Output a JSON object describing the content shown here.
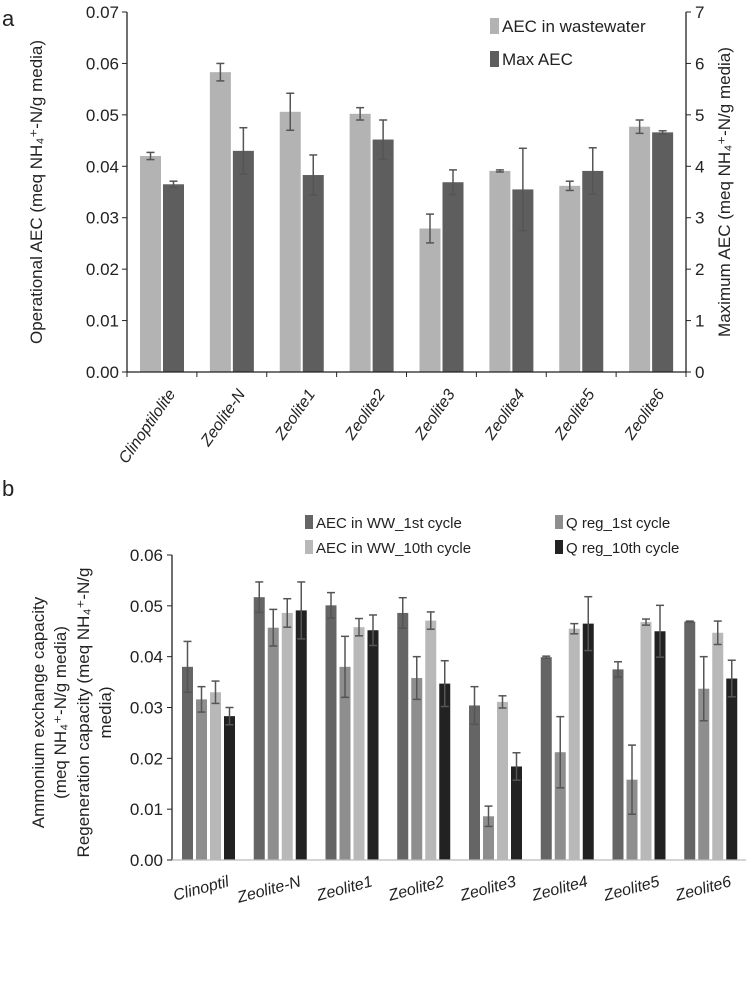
{
  "chart_data": [
    {
      "panel": "a",
      "type": "bar",
      "categories": [
        "Clinoptilolite",
        "Zeolite-N",
        "Zeolite1",
        "Zeolite2",
        "Zeolite3",
        "Zeolite4",
        "Zeolite5",
        "Zeolite6"
      ],
      "ylabel": "Operational AEC (meq NH₄⁺-N/g media)",
      "y2label": "Maximum AEC (meq NH₄⁺-N/g media)",
      "ylim": [
        0,
        0.07
      ],
      "yticks": [
        "0.00",
        "0.01",
        "0.02",
        "0.03",
        "0.04",
        "0.05",
        "0.06",
        "0.07"
      ],
      "y2lim": [
        0,
        7
      ],
      "y2ticks": [
        "0",
        "1",
        "2",
        "3",
        "4",
        "5",
        "6",
        "7"
      ],
      "legend_position": "top-right",
      "series": [
        {
          "name": "AEC in wastewater",
          "axis": "left",
          "color": "#b3b3b3",
          "values": [
            0.042,
            0.0583,
            0.0506,
            0.0502,
            0.0279,
            0.0391,
            0.0362,
            0.0477
          ],
          "errors": [
            0.0007,
            0.0017,
            0.0036,
            0.0012,
            0.0028,
            0.0002,
            0.0009,
            0.0013
          ]
        },
        {
          "name": "Max AEC",
          "axis": "right",
          "color": "#5e5e5e",
          "values": [
            3.65,
            4.3,
            3.83,
            4.52,
            3.69,
            3.55,
            3.91,
            4.66
          ],
          "errors": [
            0.06,
            0.45,
            0.39,
            0.38,
            0.24,
            0.8,
            0.45,
            0.03
          ]
        }
      ]
    },
    {
      "panel": "b",
      "type": "bar",
      "categories": [
        "Clinoptil",
        "Zeolite-N",
        "Zeolite1",
        "Zeolite2",
        "Zeolite3",
        "Zeolite4",
        "Zeolite5",
        "Zeolite6"
      ],
      "ylabel_lines": [
        "Ammonium  exchange capacity",
        "(meq NH₄⁺-N/g media)",
        "Regeneration capacity (meq NH₄⁺-N/g",
        "media)"
      ],
      "ylim": [
        0,
        0.06
      ],
      "yticks": [
        "0.00",
        "0.01",
        "0.02",
        "0.03",
        "0.04",
        "0.05",
        "0.06"
      ],
      "legend_position": "top",
      "series": [
        {
          "name": "AEC in WW_1st cycle",
          "color": "#656565",
          "values": [
            0.038,
            0.0517,
            0.0501,
            0.0486,
            0.0304,
            0.0399,
            0.0375,
            0.0469
          ],
          "errors": [
            0.005,
            0.003,
            0.0025,
            0.003,
            0.0037,
            0.0002,
            0.0015,
            0.0001
          ]
        },
        {
          "name": "Q reg_1st cycle",
          "color": "#8e8e8e",
          "values": [
            0.0316,
            0.0457,
            0.038,
            0.0358,
            0.0086,
            0.0212,
            0.0158,
            0.0337
          ],
          "errors": [
            0.0025,
            0.0036,
            0.006,
            0.0042,
            0.002,
            0.007,
            0.0068,
            0.0063
          ]
        },
        {
          "name": "AEC in WW_10th cycle",
          "color": "#b8b8b8",
          "values": [
            0.033,
            0.0486,
            0.0458,
            0.0471,
            0.0311,
            0.0455,
            0.0468,
            0.0447
          ],
          "errors": [
            0.0022,
            0.0028,
            0.0017,
            0.0017,
            0.0012,
            0.001,
            0.0006,
            0.0023
          ]
        },
        {
          "name": "Q reg_10th cycle",
          "color": "#222222",
          "values": [
            0.0283,
            0.0491,
            0.0452,
            0.0347,
            0.0184,
            0.0465,
            0.045,
            0.0357
          ],
          "errors": [
            0.0017,
            0.0056,
            0.003,
            0.0045,
            0.0027,
            0.0053,
            0.0051,
            0.0036
          ]
        }
      ]
    }
  ],
  "panel_labels": [
    "a",
    "b"
  ]
}
